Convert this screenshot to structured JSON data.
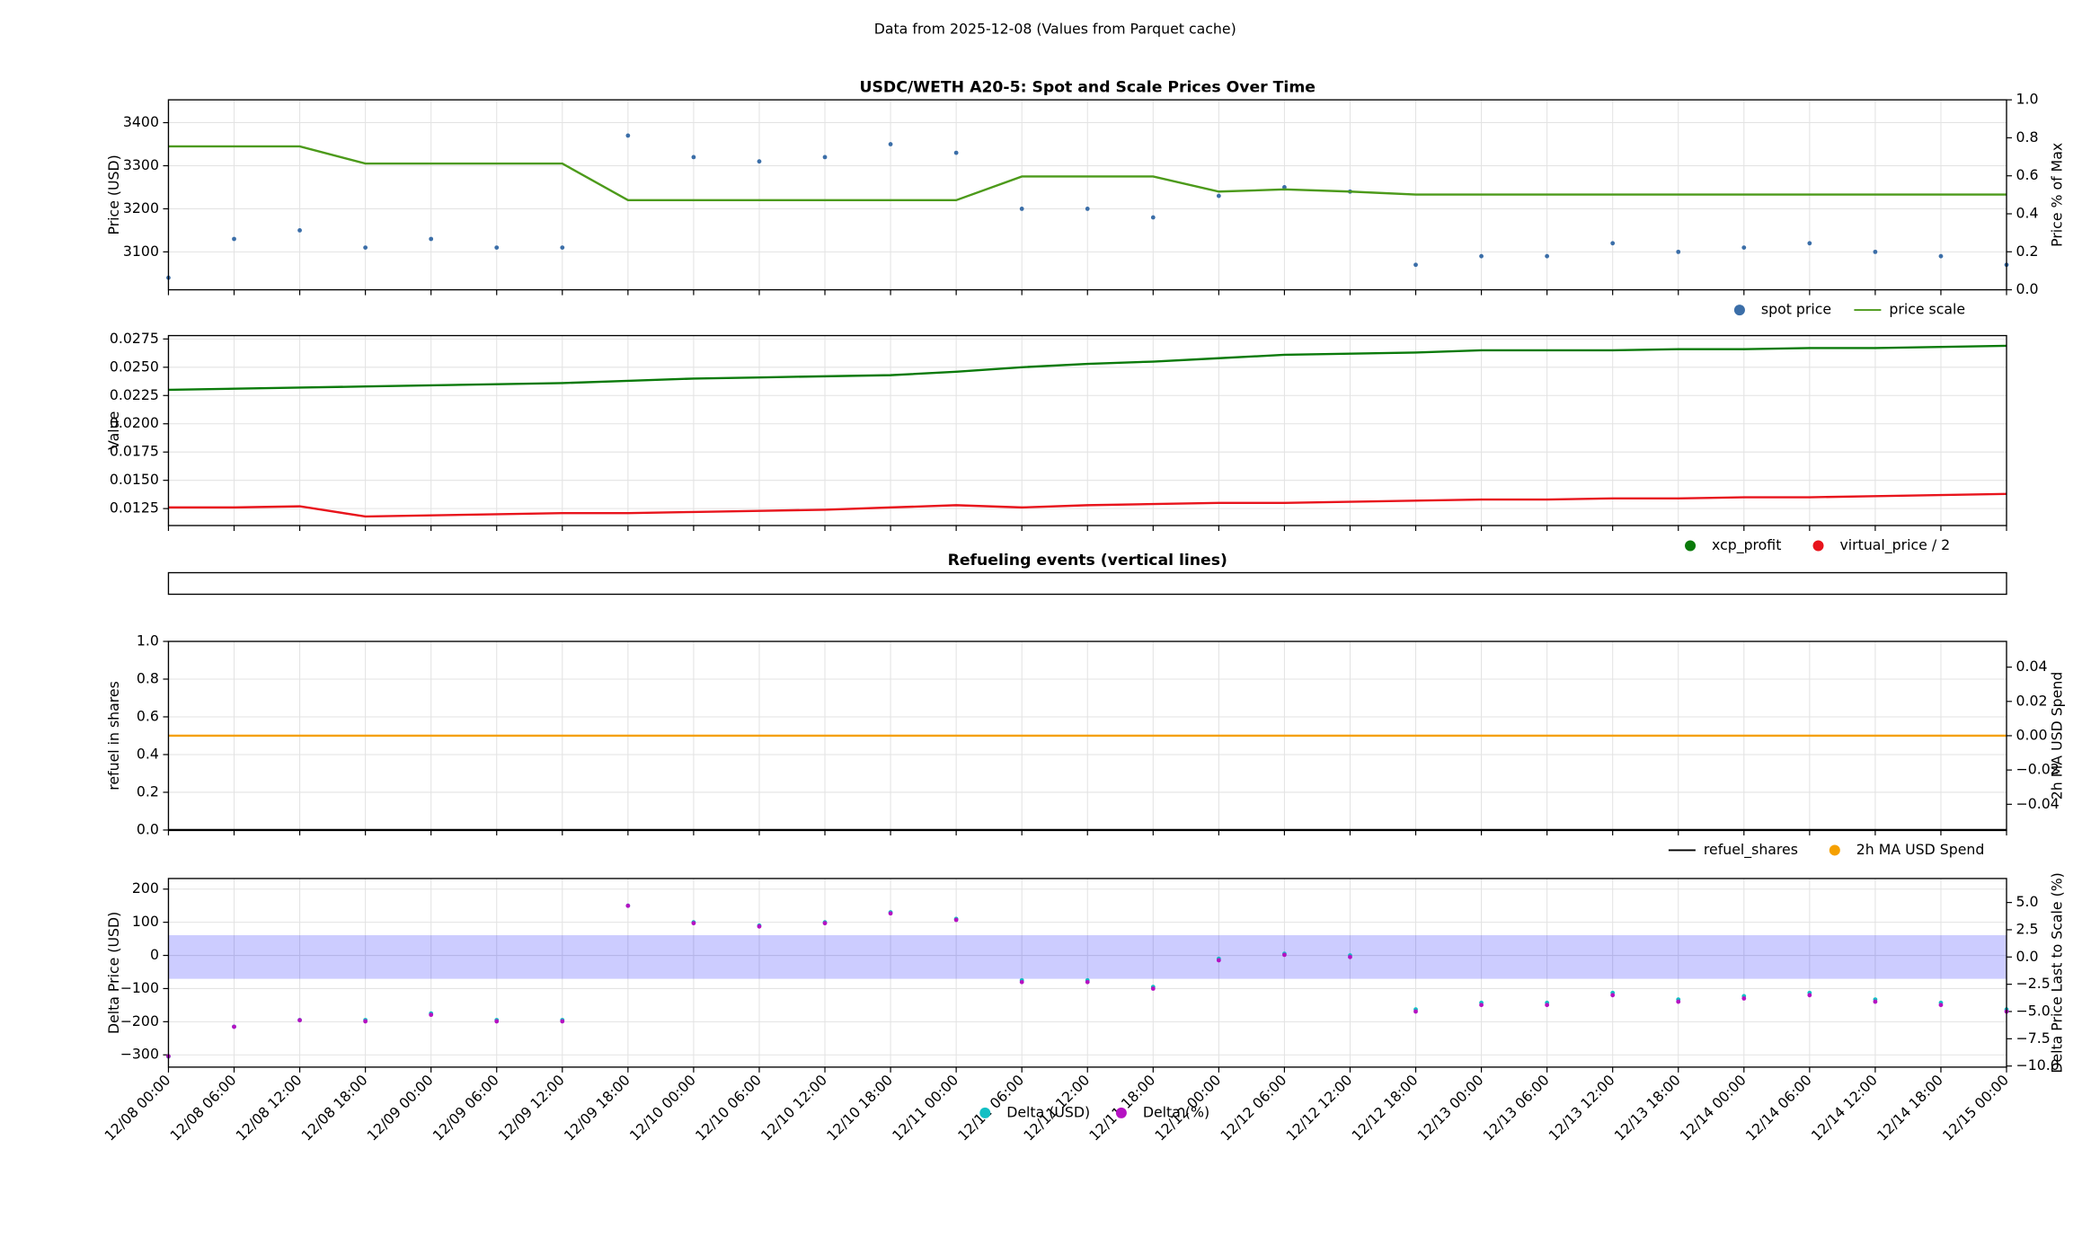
{
  "suptitle": "Data from 2025-12-08 (Values from Parquet cache)",
  "chart_data": [
    {
      "type": "line",
      "title": "USDC/WETH A20-5: Spot and Scale Prices Over Time",
      "ylabel": "Price (USD)",
      "y2label": "Price % of Max",
      "x": [
        "12/08 00:00",
        "12/08 06:00",
        "12/08 12:00",
        "12/08 18:00",
        "12/09 00:00",
        "12/09 06:00",
        "12/09 12:00",
        "12/09 18:00",
        "12/10 00:00",
        "12/10 06:00",
        "12/10 12:00",
        "12/10 18:00",
        "12/11 00:00",
        "12/11 06:00",
        "12/11 12:00",
        "12/11 18:00",
        "12/12 00:00",
        "12/12 06:00",
        "12/12 12:00",
        "12/12 18:00",
        "12/13 00:00",
        "12/13 06:00",
        "12/13 12:00",
        "12/13 18:00",
        "12/14 00:00",
        "12/14 06:00",
        "12/14 12:00",
        "12/14 18:00",
        "12/15 00:00"
      ],
      "ylim": [
        3012,
        3453
      ],
      "yticks": [
        3100,
        3200,
        3300,
        3400
      ],
      "y2lim": [
        0,
        1
      ],
      "y2ticks": [
        {
          "value": 0,
          "label": "0.0"
        },
        0.2,
        0.4,
        0.6,
        0.8,
        {
          "value": 1,
          "label": "1.0"
        }
      ],
      "grid": true,
      "legend": "below-right",
      "series": [
        {
          "name": "spot price",
          "color": "#3b6ea8",
          "marker": "dot",
          "values": [
            3040,
            3130,
            3150,
            3110,
            3130,
            3110,
            3110,
            3370,
            3320,
            3310,
            3320,
            3350,
            3330,
            3200,
            3200,
            3180,
            3230,
            3250,
            3240,
            3070,
            3090,
            3090,
            3120,
            3100,
            3110,
            3120,
            3100,
            3090,
            3070
          ]
        },
        {
          "name": "price scale",
          "color": "#4c9a1a",
          "marker": "line",
          "values": [
            3345,
            3345,
            3345,
            3305,
            3305,
            3305,
            3305,
            3220,
            3220,
            3220,
            3220,
            3220,
            3220,
            3275,
            3275,
            3275,
            3240,
            3245,
            3240,
            3233,
            3233,
            3233,
            3233,
            3233,
            3233,
            3233,
            3233,
            3233,
            3233
          ]
        }
      ]
    },
    {
      "type": "line",
      "ylabel": "Value",
      "x": [
        "12/08 00:00",
        "12/08 06:00",
        "12/08 12:00",
        "12/08 18:00",
        "12/09 00:00",
        "12/09 06:00",
        "12/09 12:00",
        "12/09 18:00",
        "12/10 00:00",
        "12/10 06:00",
        "12/10 12:00",
        "12/10 18:00",
        "12/11 00:00",
        "12/11 06:00",
        "12/11 12:00",
        "12/11 18:00",
        "12/12 00:00",
        "12/12 06:00",
        "12/12 12:00",
        "12/12 18:00",
        "12/13 00:00",
        "12/13 06:00",
        "12/13 12:00",
        "12/13 18:00",
        "12/14 00:00",
        "12/14 06:00",
        "12/14 12:00",
        "12/14 18:00",
        "12/15 00:00"
      ],
      "ylim": [
        0.011,
        0.0278
      ],
      "yticks": [
        0.0125,
        {
          "value": 0.015,
          "label": "0.0150"
        },
        0.0175,
        {
          "value": 0.02,
          "label": "0.0200"
        },
        0.0225,
        {
          "value": 0.025,
          "label": "0.0250"
        },
        0.0275
      ],
      "grid": true,
      "legend": "below-right",
      "series": [
        {
          "name": "xcp_profit",
          "color": "#0a7a0a",
          "marker": "line",
          "legend_symbol": "dot",
          "values": [
            0.023,
            0.0231,
            0.0232,
            0.0233,
            0.0234,
            0.0235,
            0.0236,
            0.0238,
            0.024,
            0.0241,
            0.0242,
            0.0243,
            0.0246,
            0.025,
            0.0253,
            0.0255,
            0.0258,
            0.0261,
            0.0262,
            0.0263,
            0.0265,
            0.0265,
            0.0265,
            0.0266,
            0.0266,
            0.0267,
            0.0267,
            0.0268,
            0.0269
          ]
        },
        {
          "name": "virtual_price / 2",
          "color": "#e8141c",
          "marker": "line",
          "legend_symbol": "dot",
          "values": [
            0.0126,
            0.0126,
            0.0127,
            0.0118,
            0.0119,
            0.012,
            0.0121,
            0.0121,
            0.0122,
            0.0123,
            0.0124,
            0.0126,
            0.0128,
            0.0126,
            0.0128,
            0.0129,
            0.013,
            0.013,
            0.0131,
            0.0132,
            0.0133,
            0.0133,
            0.0134,
            0.0134,
            0.0135,
            0.0135,
            0.0136,
            0.0137,
            0.0138
          ]
        }
      ]
    },
    {
      "type": "line",
      "title": "Refueling events (vertical lines)"
    },
    {
      "type": "line",
      "ylabel": "refuel in shares",
      "y2label": "2h MA USD Spend",
      "y2_color": "#f5a000",
      "x": [
        "12/08 00:00",
        "12/08 06:00",
        "12/08 12:00",
        "12/08 18:00",
        "12/09 00:00",
        "12/09 06:00",
        "12/09 12:00",
        "12/09 18:00",
        "12/10 00:00",
        "12/10 06:00",
        "12/10 12:00",
        "12/10 18:00",
        "12/11 00:00",
        "12/11 06:00",
        "12/11 12:00",
        "12/11 18:00",
        "12/12 00:00",
        "12/12 06:00",
        "12/12 12:00",
        "12/12 18:00",
        "12/13 00:00",
        "12/13 06:00",
        "12/13 12:00",
        "12/13 18:00",
        "12/14 00:00",
        "12/14 06:00",
        "12/14 12:00",
        "12/14 18:00",
        "12/15 00:00"
      ],
      "ylim": [
        0,
        1
      ],
      "yticks": [
        {
          "value": 0,
          "label": "0.0"
        },
        0.2,
        0.4,
        0.6,
        0.8,
        {
          "value": 1,
          "label": "1.0"
        }
      ],
      "y2lim": [
        -0.055,
        0.055
      ],
      "y2ticks": [
        {
          "value": -0.04,
          "label": "−0.04"
        },
        {
          "value": -0.02,
          "label": "−0.02"
        },
        {
          "value": 0,
          "label": "0.00"
        },
        0.02,
        0.04
      ],
      "grid": true,
      "legend": "below-right",
      "series": [
        {
          "name": "refuel_shares",
          "color": "#000000",
          "marker": "line",
          "legend_symbol": "line",
          "values": [
            0,
            0,
            0,
            0,
            0,
            0,
            0,
            0,
            0,
            0,
            0,
            0,
            0,
            0,
            0,
            0,
            0,
            0,
            0,
            0,
            0,
            0,
            0,
            0,
            0,
            0,
            0,
            0,
            0
          ]
        },
        {
          "name": "2h MA USD Spend",
          "color": "#f5a000",
          "marker": "line",
          "legend_symbol": "dot",
          "axis": "y2",
          "values": [
            0,
            0,
            0,
            0,
            0,
            0,
            0,
            0,
            0,
            0,
            0,
            0,
            0,
            0,
            0,
            0,
            0,
            0,
            0,
            0,
            0,
            0,
            0,
            0,
            0,
            0,
            0,
            0,
            0
          ]
        }
      ]
    },
    {
      "type": "line",
      "ylabel": "Delta Price (USD)",
      "y_color": "#12bfc4",
      "y2label": "Delta Price Last to Scale (%)",
      "y2_color": "#c212c2",
      "x": [
        "12/08 00:00",
        "12/08 06:00",
        "12/08 12:00",
        "12/08 18:00",
        "12/09 00:00",
        "12/09 06:00",
        "12/09 12:00",
        "12/09 18:00",
        "12/10 00:00",
        "12/10 06:00",
        "12/10 12:00",
        "12/10 18:00",
        "12/11 00:00",
        "12/11 06:00",
        "12/11 12:00",
        "12/11 18:00",
        "12/12 00:00",
        "12/12 06:00",
        "12/12 12:00",
        "12/12 18:00",
        "12/13 00:00",
        "12/13 06:00",
        "12/13 12:00",
        "12/13 18:00",
        "12/14 00:00",
        "12/14 06:00",
        "12/14 12:00",
        "12/14 18:00",
        "12/15 00:00"
      ],
      "xtick_labels": true,
      "ylim": [
        -337,
        232
      ],
      "yticks": [
        {
          "value": -300,
          "label": "−300"
        },
        {
          "value": -200,
          "label": "−200"
        },
        {
          "value": -100,
          "label": "−100"
        },
        0,
        100,
        200
      ],
      "y2lim": [
        -10.1,
        7.2
      ],
      "y2ticks": [
        {
          "value": -10,
          "label": "−10.0"
        },
        {
          "value": -7.5,
          "label": "−7.5"
        },
        {
          "value": -5,
          "label": "−5.0"
        },
        {
          "value": -2.5,
          "label": "−2.5"
        },
        {
          "value": 0,
          "label": "0.0"
        },
        2.5,
        {
          "value": 5,
          "label": "5.0"
        }
      ],
      "band": {
        "axis": "y2",
        "range": [
          -2,
          2
        ],
        "color": "#0000ff"
      },
      "grid": true,
      "legend": "below-center",
      "series": [
        {
          "name": "Delta (USD)",
          "color": "#12bfc4",
          "marker": "dot",
          "values": [
            -305,
            -215,
            -195,
            -195,
            -175,
            -195,
            -195,
            150,
            100,
            90,
            100,
            130,
            110,
            -75,
            -75,
            -95,
            -10,
            5,
            0,
            -163,
            -143,
            -143,
            -113,
            -133,
            -123,
            -113,
            -133,
            -143,
            -163
          ]
        },
        {
          "name": "Delta (%)",
          "color": "#b512c2",
          "marker": "dot",
          "axis": "y2",
          "values": [
            -9.1,
            -6.4,
            -5.8,
            -5.9,
            -5.3,
            -5.9,
            -5.9,
            4.7,
            3.1,
            2.8,
            3.1,
            4.0,
            3.4,
            -2.3,
            -2.3,
            -2.9,
            -0.3,
            0.2,
            0,
            -5.0,
            -4.4,
            -4.4,
            -3.5,
            -4.1,
            -3.8,
            -3.5,
            -4.1,
            -4.4,
            -5.0
          ]
        }
      ]
    }
  ]
}
